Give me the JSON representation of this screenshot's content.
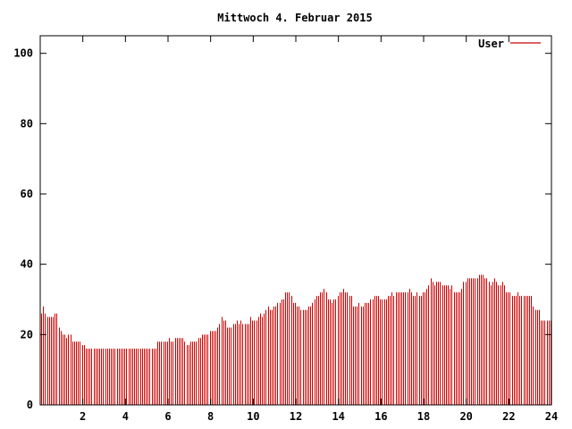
{
  "chart_data": {
    "type": "bar",
    "title": "Mittwoch 4. Februar 2015",
    "xlabel": "",
    "ylabel": "",
    "xlim": [
      0,
      24
    ],
    "ylim": [
      0,
      105
    ],
    "x_ticks": [
      2,
      4,
      6,
      8,
      10,
      12,
      14,
      16,
      18,
      20,
      22,
      24
    ],
    "y_ticks": [
      0,
      20,
      40,
      60,
      80,
      100
    ],
    "grid": false,
    "legend_position": "top-right",
    "color": "#cc0000",
    "series": [
      {
        "name": "User",
        "values": [
          26,
          28,
          26,
          25,
          25,
          25,
          25,
          26,
          26,
          22,
          21,
          20,
          20,
          19,
          20,
          20,
          18,
          18,
          18,
          18,
          18,
          17,
          17,
          16,
          16,
          16,
          16,
          16,
          16,
          16,
          16,
          16,
          16,
          16,
          16,
          16,
          16,
          16,
          16,
          16,
          16,
          16,
          16,
          16,
          16,
          16,
          16,
          16,
          16,
          16,
          16,
          16,
          16,
          16,
          16,
          16,
          16,
          16,
          16,
          16,
          18,
          18,
          18,
          18,
          18,
          18,
          19,
          18,
          18,
          19,
          19,
          19,
          19,
          19,
          18,
          17,
          17,
          18,
          18,
          18,
          18,
          19,
          19,
          20,
          20,
          20,
          20,
          21,
          21,
          21,
          21,
          22,
          23,
          25,
          24,
          24,
          22,
          22,
          22,
          23,
          23,
          24,
          23,
          24,
          23,
          23,
          23,
          23,
          25,
          24,
          24,
          24,
          25,
          26,
          25,
          26,
          27,
          28,
          27,
          27,
          28,
          28,
          29,
          29,
          30,
          30,
          32,
          32,
          32,
          31,
          29,
          29,
          28,
          28,
          27,
          27,
          27,
          27,
          28,
          28,
          29,
          30,
          31,
          31,
          32,
          32,
          33,
          32,
          30,
          30,
          29,
          30,
          30,
          31,
          32,
          32,
          33,
          32,
          32,
          31,
          31,
          28,
          28,
          28,
          29,
          28,
          28,
          29,
          29,
          29,
          30,
          30,
          31,
          31,
          31,
          30,
          30,
          30,
          30,
          31,
          31,
          32,
          31,
          32,
          32,
          32,
          32,
          32,
          32,
          32,
          33,
          32,
          31,
          31,
          32,
          31,
          31,
          32,
          32,
          33,
          34,
          36,
          35,
          34,
          35,
          35,
          35,
          34,
          34,
          34,
          34,
          33,
          34,
          32,
          32,
          32,
          32,
          33,
          35,
          35,
          36,
          36,
          36,
          36,
          36,
          36,
          37,
          37,
          37,
          36,
          36,
          35,
          34,
          35,
          36,
          35,
          34,
          34,
          35,
          34,
          32,
          32,
          32,
          31,
          31,
          31,
          32,
          31,
          31,
          31,
          31,
          31,
          31,
          31,
          28,
          27,
          27,
          27,
          24,
          24,
          24,
          24,
          24,
          24
        ]
      }
    ]
  }
}
